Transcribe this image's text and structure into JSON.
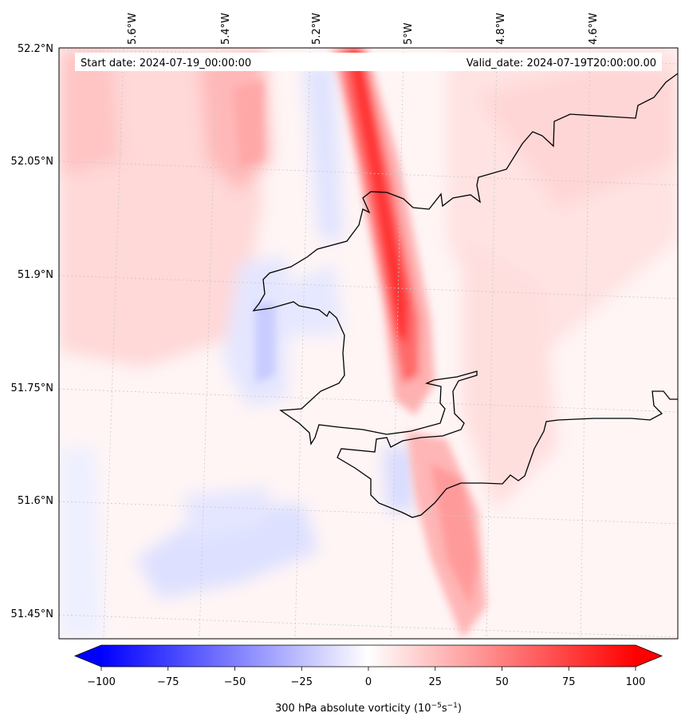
{
  "map": {
    "start_date_text": "Start date: 2024-07-19_00:00:00",
    "valid_date_text": "Valid_date: 2024-07-19T20:00:00.00",
    "lon_labels": [
      "5.6°W",
      "5.4°W",
      "5.2°W",
      "5°W",
      "4.8°W",
      "4.6°W"
    ],
    "lat_labels": [
      "52.2°N",
      "52.05°N",
      "51.9°N",
      "51.75°N",
      "51.6°N",
      "51.45°N"
    ],
    "coastline_color": "#000000",
    "gridline_color": "#bbbbbb"
  },
  "colorbar": {
    "ticks": [
      "−100",
      "−75",
      "−50",
      "−25",
      "0",
      "25",
      "50",
      "75",
      "100"
    ],
    "title_main": "300 hPa absolute vorticity (10",
    "title_sup1": "−5",
    "title_mid": "s",
    "title_sup2": "−1",
    "title_end": ")",
    "min_color": "#0000ff",
    "mid_color": "#ffffff",
    "max_color": "#ff0000",
    "range": [
      -100,
      100
    ]
  }
}
